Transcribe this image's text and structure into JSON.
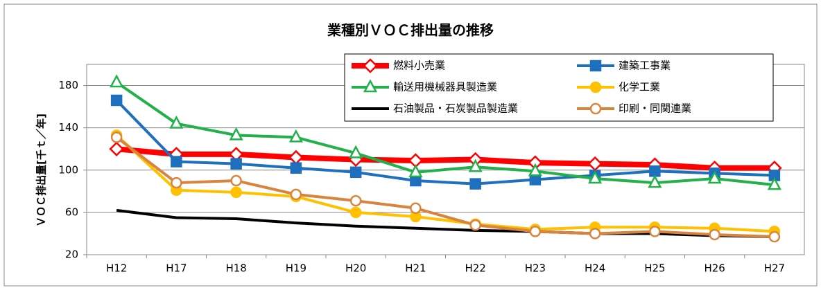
{
  "chart_data": {
    "type": "line",
    "title": "業種別ＶＯＣ排出量の推移",
    "y_label": "ＶＯＣ排出量[千ｔ／年]",
    "categories": [
      "H12",
      "H17",
      "H18",
      "H19",
      "H20",
      "H21",
      "H22",
      "H23",
      "H24",
      "H25",
      "H26",
      "H27"
    ],
    "ylim": [
      20,
      200
    ],
    "yticks": [
      20,
      60,
      100,
      140,
      180
    ],
    "grid": true,
    "legend": "top-right",
    "series": [
      {
        "name": "燃料小売業",
        "color": "#ff0000",
        "marker": "diamond",
        "marker_fill": "#ffffff",
        "values": [
          120,
          115,
          115,
          112,
          110,
          109,
          110,
          107,
          106,
          105,
          102,
          102
        ]
      },
      {
        "name": "建築工事業",
        "color": "#1f6fbf",
        "marker": "square",
        "marker_fill": "#1f6fbf",
        "values": [
          166,
          108,
          106,
          102,
          98,
          90,
          87,
          91,
          95,
          99,
          97,
          95
        ]
      },
      {
        "name": "輸送用機械器具製造業",
        "color": "#22b04a",
        "marker": "triangle",
        "marker_fill": "#ffffff",
        "values": [
          183,
          144,
          133,
          131,
          116,
          98,
          103,
          99,
          92,
          88,
          92,
          86
        ]
      },
      {
        "name": "化学工業",
        "color": "#ffc000",
        "marker": "circle",
        "marker_fill": "#ffc000",
        "values": [
          133,
          81,
          79,
          75,
          60,
          56,
          49,
          44,
          46,
          46,
          45,
          42
        ]
      },
      {
        "name": "石油製品・石炭製品製造業",
        "color": "#000000",
        "marker": "none",
        "marker_fill": "#000000",
        "values": [
          62,
          55,
          54,
          50,
          47,
          45,
          43,
          42,
          40,
          40,
          38,
          37
        ]
      },
      {
        "name": "印刷・同関連業",
        "color": "#d9843e",
        "marker": "circle",
        "marker_fill": "#ffffff",
        "values": [
          131,
          88,
          90,
          77,
          71,
          64,
          48,
          42,
          40,
          42,
          39,
          37
        ]
      }
    ]
  }
}
